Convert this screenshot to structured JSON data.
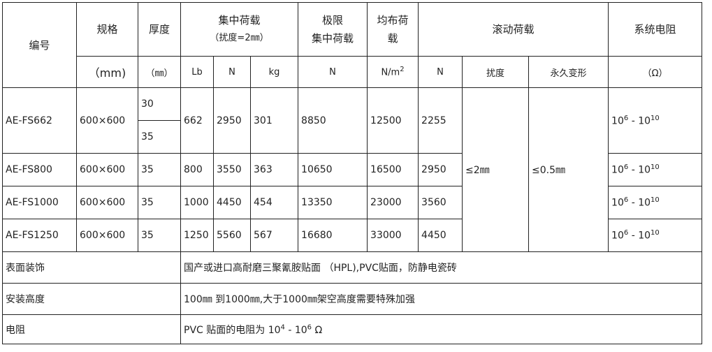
{
  "header": {
    "code": "编号",
    "spec": "规格",
    "thickness": "厚度",
    "conc_load": "集中荷载",
    "conc_load_note": "（扰度=2㎜）",
    "ult_load_1": "极限",
    "ult_load_2": "集中荷载",
    "uni_load_1": "均布荷",
    "uni_load_2": "载",
    "roll_load": "滚动荷载",
    "resistance": "系统电阻"
  },
  "units": {
    "spec": "（mm)",
    "thickness": "（㎜）",
    "lb": "Lb",
    "n": "N",
    "kg": "kg",
    "ult": "N",
    "uni": "N/m",
    "uni_sup": "2",
    "roll_n": "N",
    "deflection": "扰度",
    "perm_deform": "永久变形",
    "ohm": "（Ω）"
  },
  "rows": [
    {
      "code": "AE-FS662",
      "spec": "600×600",
      "thickness": [
        "30",
        "35"
      ],
      "lb": "662",
      "n": "2950",
      "kg": "301",
      "ult": "8850",
      "uni": "12500",
      "roll": "2255"
    },
    {
      "code": "AE-FS800",
      "spec": "600×600",
      "thickness": "35",
      "lb": "800",
      "n": "3550",
      "kg": "363",
      "ult": "10650",
      "uni": "16500",
      "roll": "2950"
    },
    {
      "code": "AE-FS1000",
      "spec": "600×600",
      "thickness": "35",
      "lb": "1000",
      "n": "4450",
      "kg": "454",
      "ult": "13350",
      "uni": "23000",
      "roll": "3560"
    },
    {
      "code": "AE-FS1250",
      "spec": "600×600",
      "thickness": "35",
      "lb": "1250",
      "n": "5560",
      "kg": "567",
      "ult": "16680",
      "uni": "33000",
      "roll": "4450"
    }
  ],
  "resistance_value": {
    "base": "10",
    "exp1": "6",
    "sep": " - ",
    "base2": "10",
    "exp2": "10"
  },
  "deflection_value": "≤2㎜",
  "perm_deform_value": "≤0.5㎜",
  "footer": [
    {
      "label": "表面装饰",
      "value": "国产或进口高耐磨三聚氰胺贴面 （HPL),PVC贴面，防静电瓷砖"
    },
    {
      "label": "安装高度",
      "value": "100㎜ 到1000㎜,大于1000㎜架空高度需要特殊加强"
    },
    {
      "label": "电阻",
      "value_pre": "PVC 贴面的电阻为 10",
      "value_exp1": "4",
      "value_mid": " - 10",
      "value_exp2": "6",
      "value_post": " Ω"
    }
  ]
}
